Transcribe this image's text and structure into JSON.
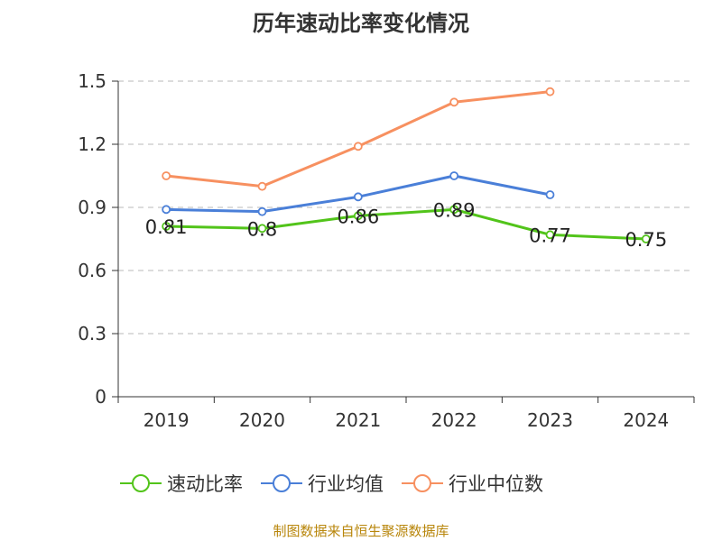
{
  "chart_data": {
    "type": "line",
    "title": "历年速动比率变化情况",
    "categories": [
      "2019",
      "2020",
      "2021",
      "2022",
      "2023",
      "2024"
    ],
    "y_ticks": [
      "0",
      "0.3",
      "0.6",
      "0.9",
      "1.2",
      "1.5"
    ],
    "ylim": [
      0,
      1.5
    ],
    "grid": true,
    "legend_position": "bottom",
    "series": [
      {
        "name": "速动比率",
        "color": "#52c41a",
        "values": [
          0.81,
          0.8,
          0.86,
          0.89,
          0.77,
          0.75
        ],
        "labels": [
          "0.81",
          "0.8",
          "0.86",
          "0.89",
          "0.77",
          "0.75"
        ]
      },
      {
        "name": "行业均值",
        "color": "#4a7fd8",
        "values": [
          0.89,
          0.88,
          0.95,
          1.05,
          0.96,
          null
        ]
      },
      {
        "name": "行业中位数",
        "color": "#f79060",
        "values": [
          1.05,
          1.0,
          1.19,
          1.4,
          1.45,
          null
        ]
      }
    ]
  },
  "source": "制图数据来自恒生聚源数据库"
}
